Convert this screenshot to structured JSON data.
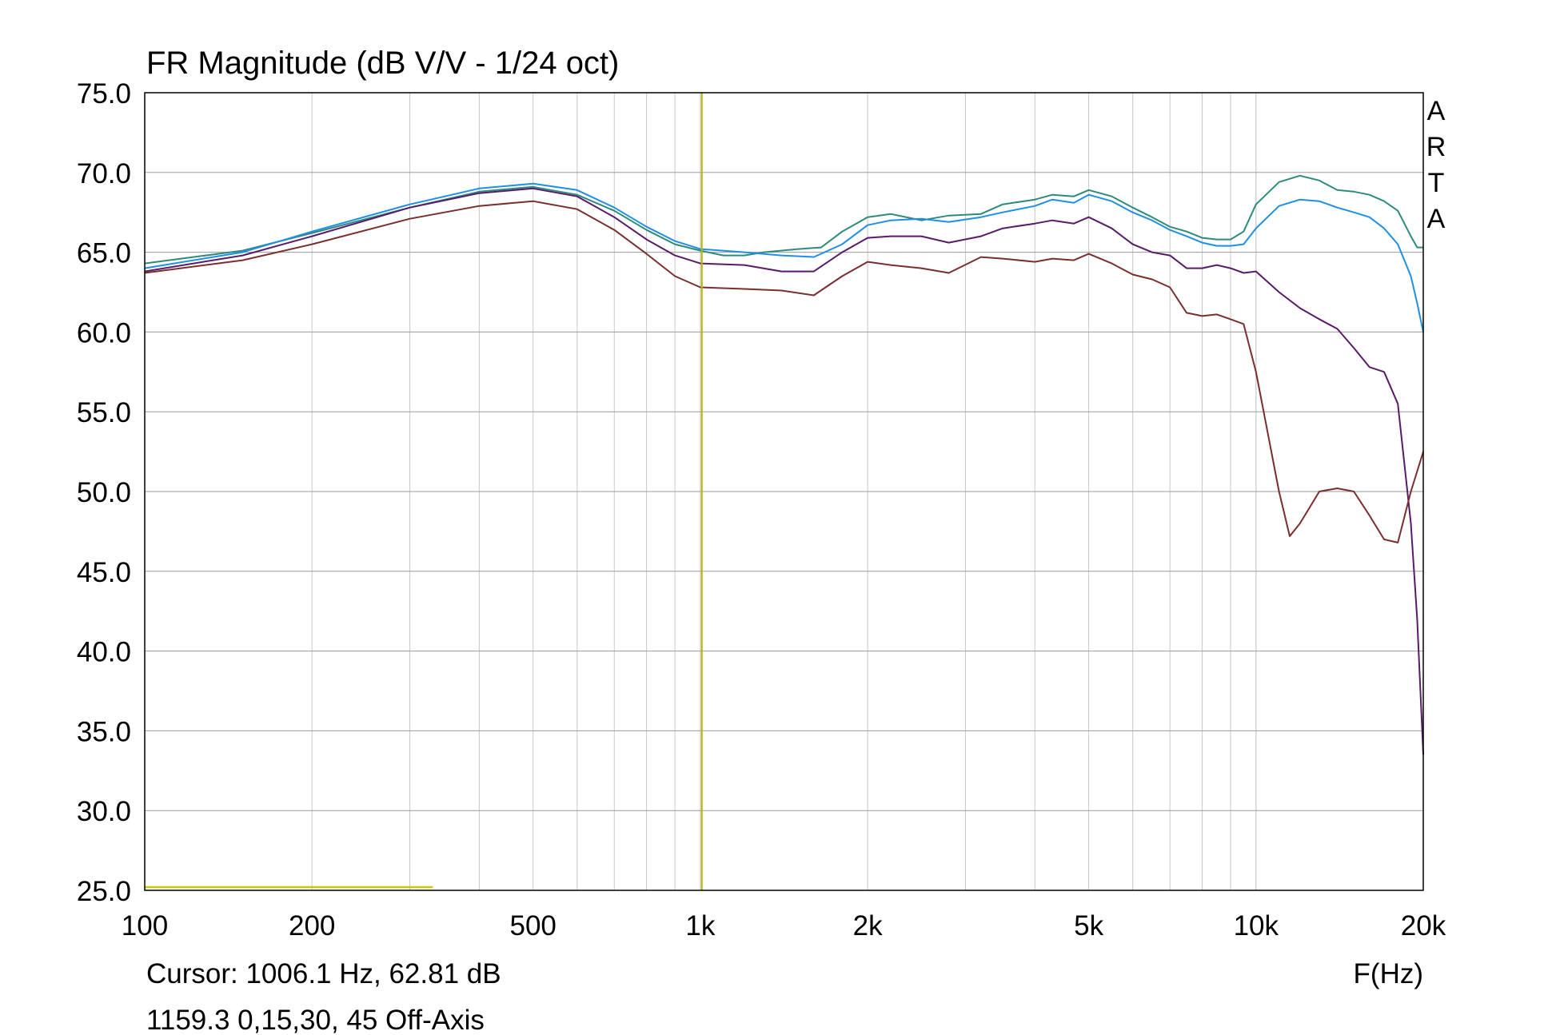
{
  "chart_data": {
    "type": "line",
    "title": "FR Magnitude (dB V/V - 1/24 oct)",
    "xlabel": "F(Hz)",
    "x_scale": "log",
    "xlim": [
      100,
      20000
    ],
    "ylim": [
      25.0,
      75.0
    ],
    "grid": true,
    "x_ticks": [
      100,
      200,
      500,
      1000,
      2000,
      5000,
      10000,
      20000
    ],
    "x_tick_labels": [
      "100",
      "200",
      "500",
      "1k",
      "2k",
      "5k",
      "10k",
      "20k"
    ],
    "y_ticks": [
      75.0,
      70.0,
      65.0,
      60.0,
      55.0,
      50.0,
      45.0,
      40.0,
      35.0,
      30.0,
      25.0
    ],
    "y_tick_labels": [
      "75.0",
      "70.0",
      "65.0",
      "60.0",
      "55.0",
      "50.0",
      "45.0",
      "40.0",
      "35.0",
      "30.0",
      "25.0"
    ],
    "brand": [
      "A",
      "R",
      "T",
      "A"
    ],
    "cursor": {
      "frequency_hz": 1006.1,
      "text": "Cursor: 1006.1 Hz, 62.81 dB"
    },
    "ref_line": {
      "from_hz": 100,
      "to_hz": 330,
      "db": 25.2
    },
    "series": [
      {
        "color": "#2e8b7c",
        "points": [
          [
            100,
            64.3
          ],
          [
            150,
            65.1
          ],
          [
            200,
            66.2
          ],
          [
            300,
            67.8
          ],
          [
            400,
            68.8
          ],
          [
            500,
            69.1
          ],
          [
            600,
            68.6
          ],
          [
            700,
            67.6
          ],
          [
            800,
            66.4
          ],
          [
            900,
            65.5
          ],
          [
            1000,
            65.1
          ],
          [
            1100,
            64.8
          ],
          [
            1200,
            64.8
          ],
          [
            1300,
            65.0
          ],
          [
            1500,
            65.2
          ],
          [
            1650,
            65.3
          ],
          [
            1800,
            66.3
          ],
          [
            2000,
            67.2
          ],
          [
            2200,
            67.4
          ],
          [
            2500,
            67.0
          ],
          [
            2800,
            67.3
          ],
          [
            3200,
            67.4
          ],
          [
            3500,
            68.0
          ],
          [
            4000,
            68.3
          ],
          [
            4300,
            68.6
          ],
          [
            4700,
            68.5
          ],
          [
            5000,
            68.9
          ],
          [
            5500,
            68.5
          ],
          [
            6000,
            67.8
          ],
          [
            6500,
            67.2
          ],
          [
            7000,
            66.6
          ],
          [
            7500,
            66.3
          ],
          [
            8000,
            65.9
          ],
          [
            8500,
            65.8
          ],
          [
            9000,
            65.8
          ],
          [
            9500,
            66.3
          ],
          [
            10000,
            68.0
          ],
          [
            11000,
            69.4
          ],
          [
            12000,
            69.8
          ],
          [
            13000,
            69.5
          ],
          [
            14000,
            68.9
          ],
          [
            15000,
            68.8
          ],
          [
            16000,
            68.6
          ],
          [
            17000,
            68.2
          ],
          [
            18000,
            67.6
          ],
          [
            19000,
            66.0
          ],
          [
            19500,
            65.3
          ],
          [
            20000,
            65.3
          ]
        ]
      },
      {
        "color": "#1f8fe6",
        "points": [
          [
            100,
            64.0
          ],
          [
            150,
            65.0
          ],
          [
            200,
            66.3
          ],
          [
            300,
            68.0
          ],
          [
            400,
            69.0
          ],
          [
            500,
            69.3
          ],
          [
            600,
            68.9
          ],
          [
            700,
            67.8
          ],
          [
            800,
            66.6
          ],
          [
            900,
            65.7
          ],
          [
            1000,
            65.2
          ],
          [
            1200,
            65.0
          ],
          [
            1400,
            64.8
          ],
          [
            1600,
            64.7
          ],
          [
            1800,
            65.5
          ],
          [
            2000,
            66.7
          ],
          [
            2200,
            67.0
          ],
          [
            2500,
            67.1
          ],
          [
            2800,
            66.9
          ],
          [
            3200,
            67.2
          ],
          [
            3500,
            67.5
          ],
          [
            4000,
            67.9
          ],
          [
            4300,
            68.3
          ],
          [
            4700,
            68.1
          ],
          [
            5000,
            68.6
          ],
          [
            5500,
            68.2
          ],
          [
            6000,
            67.5
          ],
          [
            6500,
            67.0
          ],
          [
            7000,
            66.4
          ],
          [
            7500,
            66.0
          ],
          [
            8000,
            65.6
          ],
          [
            8500,
            65.4
          ],
          [
            9000,
            65.4
          ],
          [
            9500,
            65.5
          ],
          [
            10000,
            66.5
          ],
          [
            11000,
            67.9
          ],
          [
            12000,
            68.3
          ],
          [
            13000,
            68.2
          ],
          [
            14000,
            67.8
          ],
          [
            15000,
            67.5
          ],
          [
            16000,
            67.2
          ],
          [
            17000,
            66.5
          ],
          [
            18000,
            65.5
          ],
          [
            19000,
            63.5
          ],
          [
            19500,
            61.8
          ],
          [
            20000,
            60.0
          ]
        ]
      },
      {
        "color": "#5a1a6a",
        "points": [
          [
            100,
            63.8
          ],
          [
            150,
            64.8
          ],
          [
            200,
            66.0
          ],
          [
            300,
            67.8
          ],
          [
            400,
            68.7
          ],
          [
            500,
            69.0
          ],
          [
            600,
            68.5
          ],
          [
            700,
            67.2
          ],
          [
            800,
            65.8
          ],
          [
            900,
            64.8
          ],
          [
            1000,
            64.3
          ],
          [
            1200,
            64.2
          ],
          [
            1400,
            63.8
          ],
          [
            1600,
            63.8
          ],
          [
            1800,
            65.0
          ],
          [
            2000,
            65.9
          ],
          [
            2200,
            66.0
          ],
          [
            2500,
            66.0
          ],
          [
            2800,
            65.6
          ],
          [
            3200,
            66.0
          ],
          [
            3500,
            66.5
          ],
          [
            4000,
            66.8
          ],
          [
            4300,
            67.0
          ],
          [
            4700,
            66.8
          ],
          [
            5000,
            67.2
          ],
          [
            5500,
            66.5
          ],
          [
            6000,
            65.5
          ],
          [
            6500,
            65.0
          ],
          [
            7000,
            64.8
          ],
          [
            7500,
            64.0
          ],
          [
            8000,
            64.0
          ],
          [
            8500,
            64.2
          ],
          [
            9000,
            64.0
          ],
          [
            9500,
            63.7
          ],
          [
            10000,
            63.8
          ],
          [
            11000,
            62.5
          ],
          [
            12000,
            61.5
          ],
          [
            13000,
            60.8
          ],
          [
            14000,
            60.2
          ],
          [
            15000,
            59.0
          ],
          [
            16000,
            57.8
          ],
          [
            17000,
            57.5
          ],
          [
            18000,
            55.5
          ],
          [
            19000,
            48.0
          ],
          [
            19500,
            42.0
          ],
          [
            20000,
            33.5
          ]
        ]
      },
      {
        "color": "#7a2e2e",
        "points": [
          [
            100,
            63.7
          ],
          [
            150,
            64.5
          ],
          [
            200,
            65.5
          ],
          [
            300,
            67.1
          ],
          [
            400,
            67.9
          ],
          [
            500,
            68.2
          ],
          [
            600,
            67.7
          ],
          [
            700,
            66.4
          ],
          [
            800,
            64.9
          ],
          [
            900,
            63.5
          ],
          [
            1000,
            62.8
          ],
          [
            1200,
            62.7
          ],
          [
            1400,
            62.6
          ],
          [
            1600,
            62.3
          ],
          [
            1800,
            63.5
          ],
          [
            2000,
            64.4
          ],
          [
            2200,
            64.2
          ],
          [
            2500,
            64.0
          ],
          [
            2800,
            63.7
          ],
          [
            3200,
            64.7
          ],
          [
            3500,
            64.6
          ],
          [
            4000,
            64.4
          ],
          [
            4300,
            64.6
          ],
          [
            4700,
            64.5
          ],
          [
            5000,
            64.9
          ],
          [
            5500,
            64.3
          ],
          [
            6000,
            63.6
          ],
          [
            6500,
            63.3
          ],
          [
            7000,
            62.8
          ],
          [
            7500,
            61.2
          ],
          [
            8000,
            61.0
          ],
          [
            8500,
            61.1
          ],
          [
            9000,
            60.8
          ],
          [
            9500,
            60.5
          ],
          [
            10000,
            57.5
          ],
          [
            11000,
            50.0
          ],
          [
            11500,
            47.2
          ],
          [
            12000,
            48.0
          ],
          [
            13000,
            50.0
          ],
          [
            14000,
            50.2
          ],
          [
            15000,
            50.0
          ],
          [
            16000,
            48.5
          ],
          [
            17000,
            47.0
          ],
          [
            18000,
            46.8
          ],
          [
            19000,
            50.0
          ],
          [
            20000,
            52.5
          ]
        ]
      }
    ]
  },
  "info": {
    "cursor": "Cursor: 1006.1 Hz, 62.81 dB",
    "legend": "1159.3 0,15,30, 45 Off-Axis"
  }
}
